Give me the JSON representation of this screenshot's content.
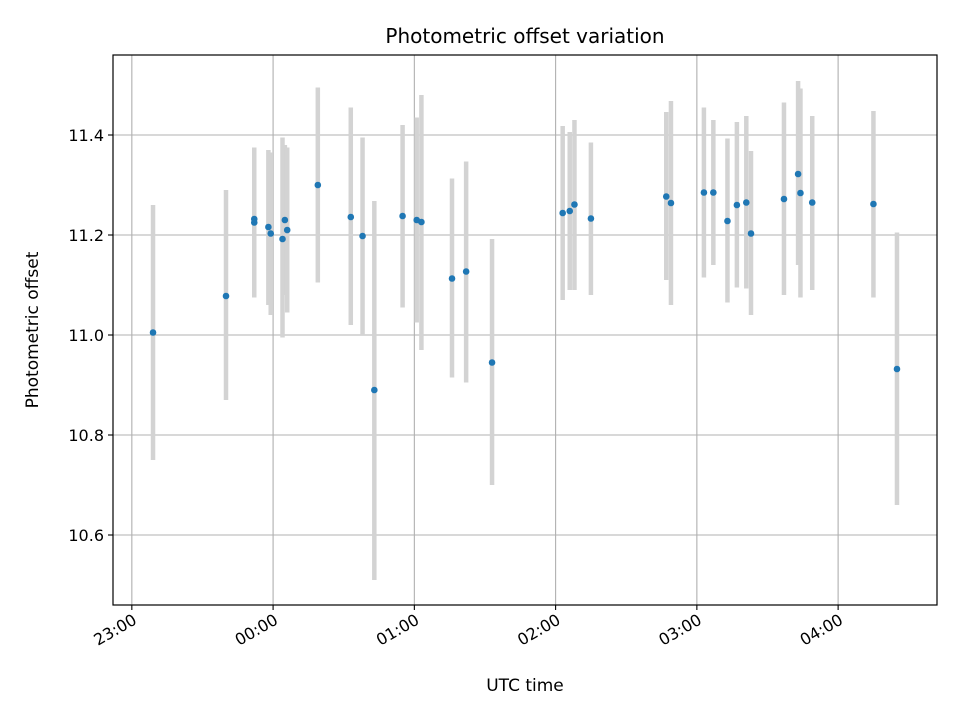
{
  "chart_data": {
    "type": "scatter",
    "title": "Photometric offset variation",
    "xlabel": "UTC time",
    "ylabel": "Photometric offset",
    "x_unit": "UTC time (HH:MM)",
    "xlim": [
      "22:52",
      "04:42"
    ],
    "ylim": [
      10.46,
      11.56
    ],
    "x_ticks": [
      "23:00",
      "00:00",
      "01:00",
      "02:00",
      "03:00",
      "04:00"
    ],
    "y_ticks": [
      "10.6",
      "10.8",
      "11.0",
      "11.2",
      "11.4"
    ],
    "grid": true,
    "point_color": "#1f77b4",
    "errorbar_color": "#d3d3d3",
    "points": [
      {
        "x": "23:09",
        "y": 11.005,
        "ylo": 10.75,
        "yhi": 11.26
      },
      {
        "x": "23:40",
        "y": 11.078,
        "ylo": 10.87,
        "yhi": 11.29
      },
      {
        "x": "23:52",
        "y": 11.225,
        "ylo": 11.075,
        "yhi": 11.375
      },
      {
        "x": "23:52",
        "y": 11.232,
        "ylo": 11.09,
        "yhi": 11.37
      },
      {
        "x": "23:58",
        "y": 11.216,
        "ylo": 11.06,
        "yhi": 11.37
      },
      {
        "x": "23:59",
        "y": 11.203,
        "ylo": 11.04,
        "yhi": 11.365
      },
      {
        "x": "00:04",
        "y": 11.192,
        "ylo": 10.995,
        "yhi": 11.395
      },
      {
        "x": "00:05",
        "y": 11.23,
        "ylo": 11.08,
        "yhi": 11.38
      },
      {
        "x": "00:06",
        "y": 11.21,
        "ylo": 11.045,
        "yhi": 11.375
      },
      {
        "x": "00:19",
        "y": 11.3,
        "ylo": 11.105,
        "yhi": 11.495
      },
      {
        "x": "00:33",
        "y": 11.236,
        "ylo": 11.02,
        "yhi": 11.455
      },
      {
        "x": "00:38",
        "y": 11.198,
        "ylo": 11.0,
        "yhi": 11.395
      },
      {
        "x": "00:43",
        "y": 10.89,
        "ylo": 10.51,
        "yhi": 11.268
      },
      {
        "x": "00:55",
        "y": 11.238,
        "ylo": 11.055,
        "yhi": 11.42
      },
      {
        "x": "01:01",
        "y": 11.23,
        "ylo": 11.025,
        "yhi": 11.435
      },
      {
        "x": "01:03",
        "y": 11.226,
        "ylo": 10.97,
        "yhi": 11.48
      },
      {
        "x": "01:16",
        "y": 11.113,
        "ylo": 10.915,
        "yhi": 11.313
      },
      {
        "x": "01:22",
        "y": 11.127,
        "ylo": 10.905,
        "yhi": 11.347
      },
      {
        "x": "01:33",
        "y": 10.945,
        "ylo": 10.7,
        "yhi": 11.192
      },
      {
        "x": "02:03",
        "y": 11.244,
        "ylo": 11.07,
        "yhi": 11.418
      },
      {
        "x": "02:06",
        "y": 11.248,
        "ylo": 11.09,
        "yhi": 11.406
      },
      {
        "x": "02:08",
        "y": 11.261,
        "ylo": 11.09,
        "yhi": 11.43
      },
      {
        "x": "02:15",
        "y": 11.233,
        "ylo": 11.08,
        "yhi": 11.385
      },
      {
        "x": "02:47",
        "y": 11.277,
        "ylo": 11.11,
        "yhi": 11.446
      },
      {
        "x": "02:49",
        "y": 11.264,
        "ylo": 11.06,
        "yhi": 11.468
      },
      {
        "x": "03:03",
        "y": 11.285,
        "ylo": 11.115,
        "yhi": 11.455
      },
      {
        "x": "03:07",
        "y": 11.285,
        "ylo": 11.14,
        "yhi": 11.43
      },
      {
        "x": "03:13",
        "y": 11.228,
        "ylo": 11.065,
        "yhi": 11.393
      },
      {
        "x": "03:17",
        "y": 11.26,
        "ylo": 11.095,
        "yhi": 11.426
      },
      {
        "x": "03:21",
        "y": 11.265,
        "ylo": 11.093,
        "yhi": 11.438
      },
      {
        "x": "03:23",
        "y": 11.203,
        "ylo": 11.04,
        "yhi": 11.368
      },
      {
        "x": "03:37",
        "y": 11.272,
        "ylo": 11.08,
        "yhi": 11.465
      },
      {
        "x": "03:43",
        "y": 11.322,
        "ylo": 11.14,
        "yhi": 11.508
      },
      {
        "x": "03:44",
        "y": 11.284,
        "ylo": 11.075,
        "yhi": 11.493
      },
      {
        "x": "03:49",
        "y": 11.265,
        "ylo": 11.09,
        "yhi": 11.438
      },
      {
        "x": "04:15",
        "y": 11.262,
        "ylo": 11.075,
        "yhi": 11.448
      },
      {
        "x": "04:25",
        "y": 10.932,
        "ylo": 10.66,
        "yhi": 11.205
      }
    ]
  }
}
